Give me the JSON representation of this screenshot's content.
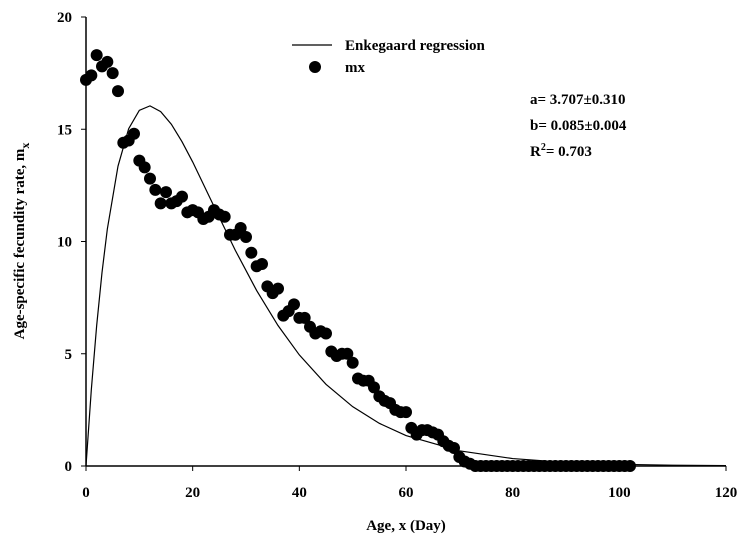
{
  "chart_data": {
    "type": "scatter",
    "xlabel": "Age, x (Day)",
    "ylabel": {
      "text": "Age-specific fecundity rate, m",
      "sub": "x"
    },
    "xlim": [
      0,
      120
    ],
    "xticks": [
      0,
      20,
      40,
      60,
      80,
      100,
      120
    ],
    "ylim": [
      0,
      20
    ],
    "yticks": [
      0,
      5,
      10,
      15,
      20
    ],
    "legend": "top-center",
    "annotations": [
      {
        "text": "a= 3.707±0.310"
      },
      {
        "text": "b= 0.085±0.004"
      },
      {
        "parts": [
          "R",
          "2",
          "= 0.703"
        ]
      }
    ],
    "series": [
      {
        "name": "Enkegaard regression",
        "type": "line",
        "color": "#000000",
        "x": [
          0,
          1,
          2,
          3,
          4,
          6,
          8,
          10,
          12,
          14,
          16,
          18,
          20,
          24,
          28,
          32,
          36,
          40,
          45,
          50,
          55,
          60,
          70,
          80,
          90,
          100,
          110,
          120
        ],
        "values": [
          0,
          3.405,
          6.255,
          8.618,
          10.554,
          13.356,
          15.024,
          15.844,
          16.041,
          15.788,
          15.225,
          14.446,
          13.545,
          11.566,
          9.606,
          7.814,
          6.257,
          4.948,
          3.638,
          2.643,
          1.9,
          1.356,
          0.676,
          0.33,
          0.159,
          0.075,
          0.035,
          0.017
        ]
      },
      {
        "name": "mx",
        "type": "scatter",
        "color": "#000000",
        "x": [
          0,
          1,
          2,
          3,
          4,
          5,
          6,
          7,
          8,
          9,
          10,
          11,
          12,
          13,
          14,
          15,
          16,
          17,
          18,
          19,
          20,
          21,
          22,
          23,
          24,
          25,
          26,
          27,
          28,
          29,
          30,
          31,
          32,
          33,
          34,
          35,
          36,
          37,
          38,
          39,
          40,
          41,
          42,
          43,
          44,
          45,
          46,
          47,
          48,
          49,
          50,
          51,
          52,
          53,
          54,
          55,
          56,
          57,
          58,
          59,
          60,
          61,
          62,
          63,
          64,
          65,
          66,
          67,
          68,
          69,
          70,
          71,
          72,
          73,
          74,
          75,
          76,
          77,
          78,
          79,
          80,
          81,
          82,
          83,
          84,
          85,
          86,
          87,
          88,
          89,
          90,
          91,
          92,
          93,
          94,
          95,
          96,
          97,
          98,
          99,
          100,
          101,
          102
        ],
        "values": [
          17.2,
          17.4,
          18.3,
          17.8,
          18.0,
          17.5,
          16.7,
          14.4,
          14.5,
          14.8,
          13.6,
          13.3,
          12.8,
          12.3,
          11.7,
          12.2,
          11.7,
          11.8,
          12.0,
          11.3,
          11.4,
          11.3,
          11.0,
          11.1,
          11.4,
          11.2,
          11.1,
          10.3,
          10.3,
          10.6,
          10.2,
          9.5,
          8.9,
          9.0,
          8.0,
          7.7,
          7.9,
          6.7,
          6.9,
          7.2,
          6.6,
          6.6,
          6.2,
          5.9,
          6.0,
          5.9,
          5.1,
          4.9,
          5.0,
          5.0,
          4.6,
          3.9,
          3.8,
          3.8,
          3.5,
          3.1,
          2.9,
          2.8,
          2.5,
          2.4,
          2.4,
          1.7,
          1.4,
          1.6,
          1.6,
          1.5,
          1.4,
          1.1,
          0.9,
          0.8,
          0.4,
          0.2,
          0.1,
          0,
          0,
          0,
          0,
          0,
          0,
          0,
          0,
          0,
          0,
          0,
          0,
          0,
          0,
          0,
          0,
          0,
          0,
          0,
          0,
          0,
          0,
          0,
          0,
          0,
          0,
          0,
          0,
          0,
          0
        ]
      }
    ]
  }
}
